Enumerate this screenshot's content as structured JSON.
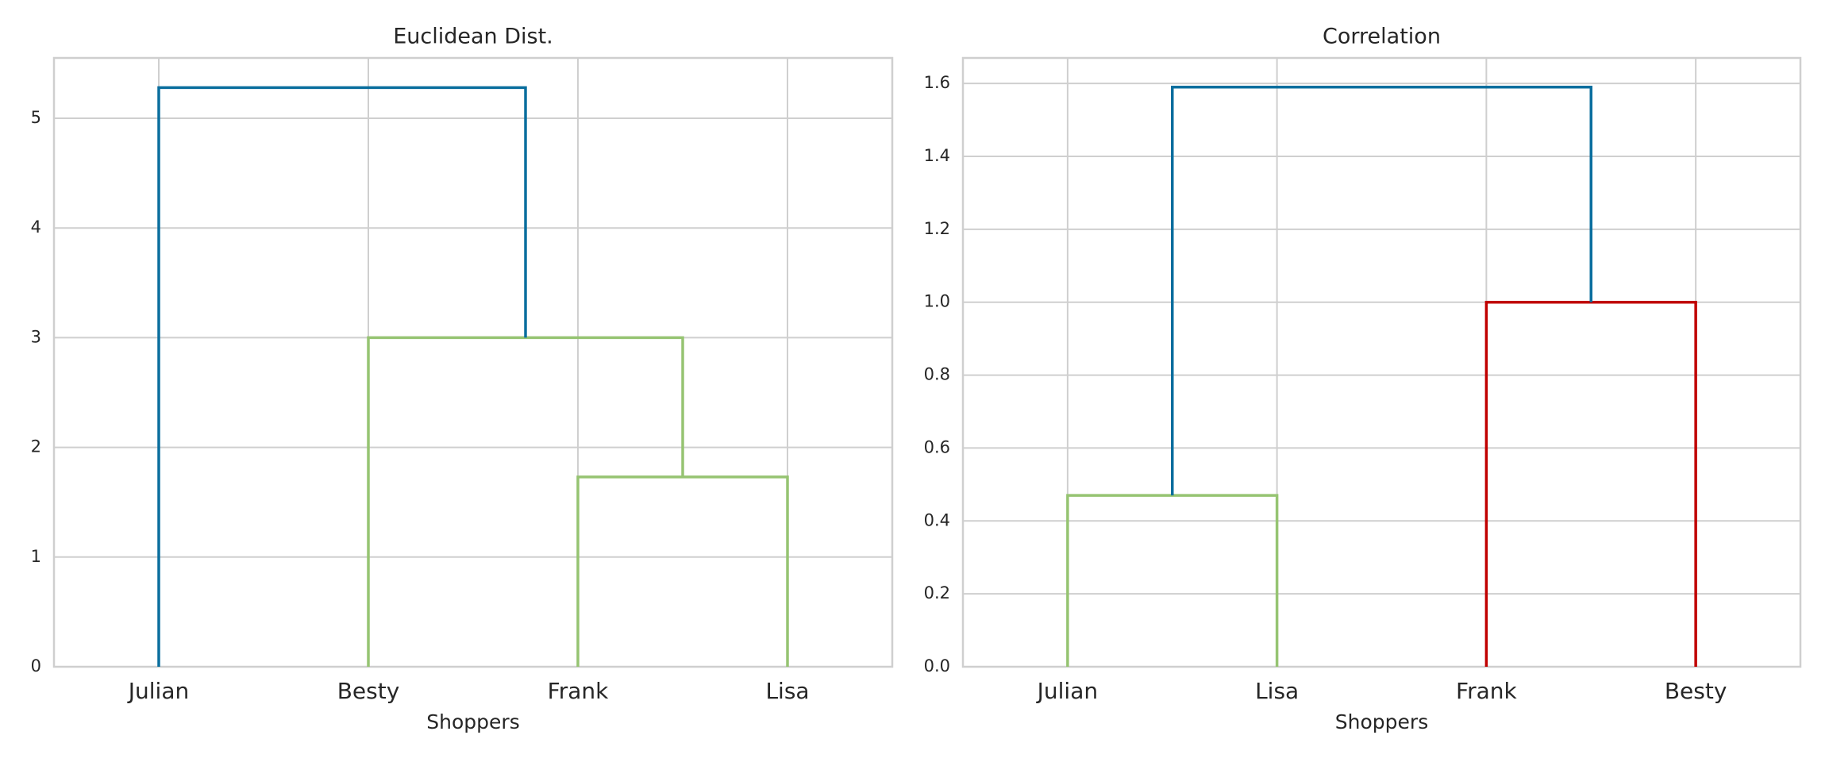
{
  "chart_data": [
    {
      "type": "dendrogram",
      "title": "Euclidean Dist.",
      "xlabel": "Shoppers",
      "categories": [
        "Julian",
        "Besty",
        "Frank",
        "Lisa"
      ],
      "merges": [
        {
          "children": [
            2,
            3
          ],
          "height": 1.73,
          "color": "#96c472"
        },
        {
          "children": [
            1,
            4
          ],
          "height": 3.0,
          "color": "#96c472"
        },
        {
          "children": [
            0,
            5
          ],
          "height": 5.28,
          "color": "#0a6e9e"
        }
      ],
      "ylim": [
        0,
        5.55
      ],
      "yticks": [
        0,
        1,
        2,
        3,
        4,
        5
      ],
      "grid": true
    },
    {
      "type": "dendrogram",
      "title": "Correlation",
      "xlabel": "Shoppers",
      "categories": [
        "Julian",
        "Lisa",
        "Frank",
        "Besty"
      ],
      "merges": [
        {
          "children": [
            0,
            1
          ],
          "height": 0.47,
          "color": "#96c472"
        },
        {
          "children": [
            2,
            3
          ],
          "height": 1.0,
          "color": "#c00000"
        },
        {
          "children": [
            4,
            5
          ],
          "height": 1.59,
          "color": "#0a6e9e"
        }
      ],
      "ylim": [
        0,
        1.67
      ],
      "yticks": [
        {
          "value": 0,
          "label": "0.0"
        },
        0.2,
        0.4,
        0.6,
        0.8,
        {
          "value": 1,
          "label": "1.0"
        },
        1.2,
        1.4,
        1.6
      ],
      "grid": true
    }
  ]
}
